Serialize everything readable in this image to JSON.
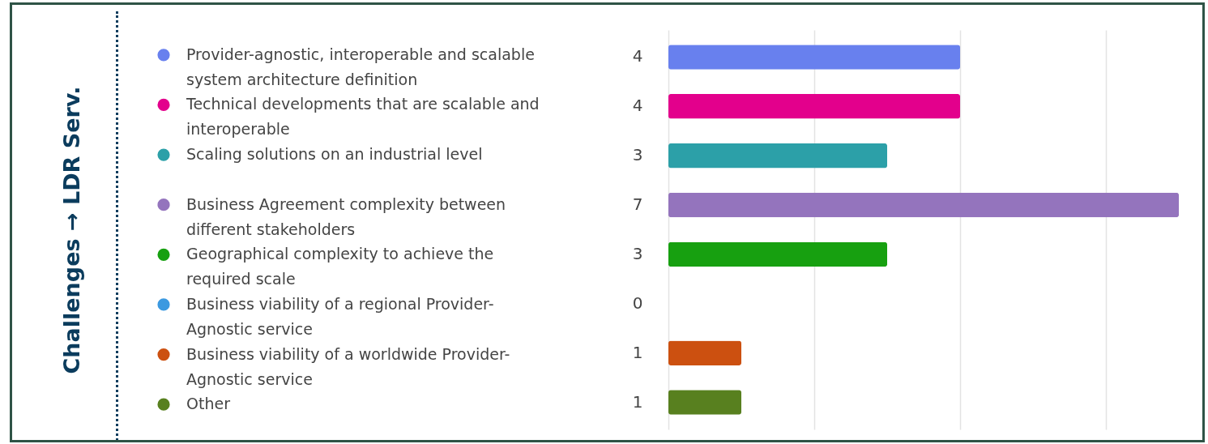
{
  "chart_data": {
    "type": "bar",
    "orientation": "horizontal",
    "ylabel": "Challenges → LDR Serv.",
    "categories": [
      "Provider-agnostic, interoperable and scalable system architecture definition",
      "Technical developments that are scalable and interoperable",
      "Scaling solutions on an industrial level",
      "Business Agreement complexity between different stakeholders",
      "Geographical complexity to achieve the required scale",
      "Business viability of a regional Provider-Agnostic service",
      "Business viability of a worldwide Provider-Agnostic service",
      "Other"
    ],
    "values": [
      4,
      4,
      3,
      7,
      3,
      0,
      1,
      1
    ],
    "colors": [
      "#6880ee",
      "#e3008c",
      "#2ca0a8",
      "#9474bd",
      "#17a010",
      "#3b99e0",
      "#cc5010",
      "#58801f"
    ],
    "xticks": [
      {
        "value": 0,
        "label": null
      },
      {
        "value": 2,
        "label": null
      },
      {
        "value": 4,
        "label": null
      },
      {
        "value": 6,
        "label": null
      }
    ],
    "grid": "x",
    "data_labels": true
  }
}
